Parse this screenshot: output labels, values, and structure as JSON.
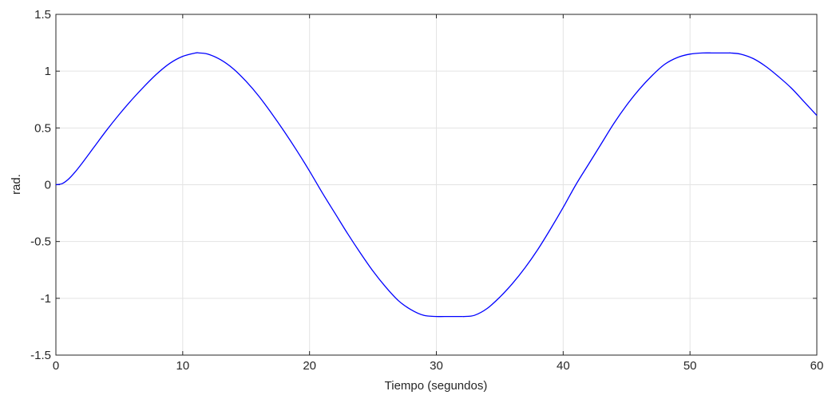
{
  "chart_data": {
    "type": "line",
    "title": "",
    "xlabel": "Tiempo (segundos)",
    "ylabel": "rad.",
    "xlim": [
      0,
      60
    ],
    "ylim": [
      -1.5,
      1.5
    ],
    "x_ticks": [
      0,
      10,
      20,
      30,
      40,
      50,
      60
    ],
    "x_tick_labels": [
      "0",
      "10",
      "20",
      "30",
      "40",
      "50",
      "60"
    ],
    "y_ticks": [
      1.5,
      1,
      0.5,
      0,
      -0.5,
      -1,
      -1.5
    ],
    "y_tick_labels": [
      "1.5",
      "1",
      "0.5",
      "0",
      "-0.5",
      "-1",
      "-1.5"
    ],
    "grid": true,
    "line_color": "#0000ff",
    "series": [
      {
        "x": [
          0,
          0.5,
          1,
          1.5,
          2,
          3,
          4,
          5,
          6,
          7,
          8,
          9,
          10,
          11,
          11.3,
          12,
          13,
          14,
          15,
          16,
          17,
          18,
          19,
          20,
          21,
          22,
          23,
          24,
          25,
          26,
          27,
          28,
          29,
          30,
          31,
          32,
          32.2,
          33,
          34,
          35,
          36,
          37,
          38,
          39,
          40,
          41,
          42,
          43,
          44,
          45,
          46,
          47,
          48,
          49,
          50,
          51,
          52,
          53,
          53.2,
          54,
          55,
          56,
          57,
          58,
          59,
          60
        ],
        "y": [
          0,
          0.01,
          0.05,
          0.11,
          0.18,
          0.33,
          0.48,
          0.62,
          0.75,
          0.87,
          0.98,
          1.07,
          1.13,
          1.16,
          1.16,
          1.15,
          1.1,
          1.02,
          0.91,
          0.78,
          0.63,
          0.47,
          0.3,
          0.12,
          -0.07,
          -0.25,
          -0.43,
          -0.6,
          -0.76,
          -0.9,
          -1.02,
          -1.1,
          -1.15,
          -1.16,
          -1.16,
          -1.16,
          -1.16,
          -1.15,
          -1.09,
          -0.99,
          -0.87,
          -0.73,
          -0.57,
          -0.39,
          -0.2,
          0,
          0.18,
          0.36,
          0.54,
          0.7,
          0.84,
          0.96,
          1.06,
          1.12,
          1.15,
          1.16,
          1.16,
          1.16,
          1.16,
          1.15,
          1.11,
          1.04,
          0.95,
          0.85,
          0.73,
          0.61
        ]
      }
    ]
  }
}
